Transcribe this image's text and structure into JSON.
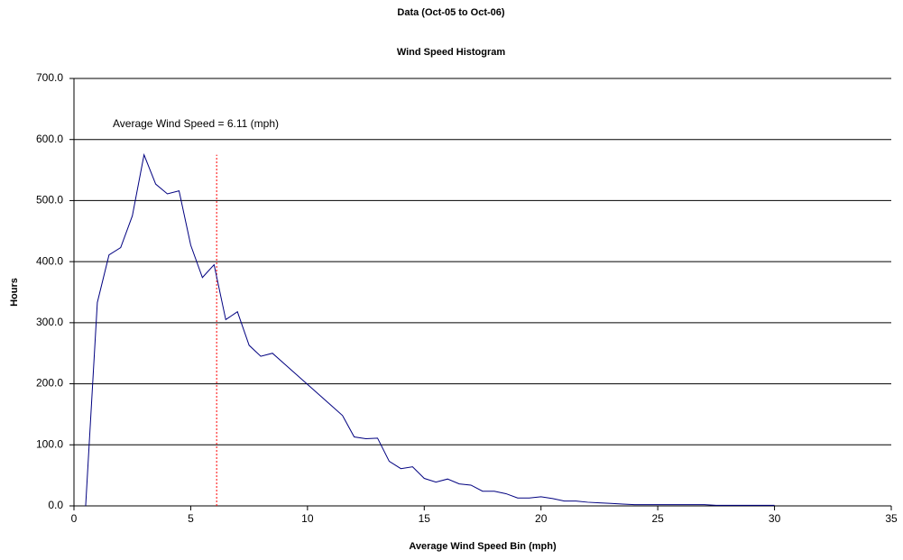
{
  "chart_data": {
    "type": "line",
    "title": "Data (Oct-05 to Oct-06)",
    "subtitle": "Wind Speed Histogram",
    "x_label": "Average  Wind Speed Bin (mph)",
    "y_label": "Hours",
    "annotation": "Average Wind Speed = 6.11 (mph)",
    "average_line": {
      "x": 6.11,
      "y_top": 575,
      "color": "#ff0000"
    },
    "x": [
      0.5,
      1,
      1.5,
      2,
      2.5,
      3,
      3.5,
      4,
      4.5,
      5,
      5.5,
      6,
      6.5,
      7,
      7.5,
      8,
      8.5,
      9,
      9.5,
      10,
      10.5,
      11,
      11.5,
      12,
      12.5,
      13,
      13.5,
      14,
      14.5,
      15,
      15.5,
      16,
      16.5,
      17,
      17.5,
      18,
      18.5,
      19,
      19.5,
      20,
      20.5,
      21,
      21.5,
      22,
      22.5,
      23,
      23.5,
      24,
      24.5,
      25,
      25.5,
      26,
      26.5,
      27,
      27.5,
      28,
      28.5,
      29,
      29.5,
      30
    ],
    "values": [
      0,
      333,
      411,
      423,
      475,
      575,
      527,
      511,
      516,
      427,
      374,
      395,
      305,
      318,
      263,
      245,
      250,
      233,
      216,
      199,
      182,
      165,
      148,
      113,
      110,
      111,
      73,
      61,
      64,
      45,
      39,
      44,
      36,
      34,
      24,
      24,
      20,
      13,
      13,
      15,
      12,
      8,
      8,
      6,
      5,
      4,
      3,
      2,
      2,
      2,
      2,
      2,
      2,
      2,
      1,
      1,
      1,
      1,
      1,
      1
    ],
    "color": "#000080",
    "xlim": [
      0,
      35
    ],
    "xticks": [
      0,
      5,
      10,
      15,
      20,
      25,
      30,
      35
    ],
    "ylim": [
      0,
      700
    ],
    "yticks": [
      {
        "value": 0,
        "label": "0.0"
      },
      {
        "value": 100,
        "label": "100.0"
      },
      {
        "value": 200,
        "label": "200.0"
      },
      {
        "value": 300,
        "label": "300.0"
      },
      {
        "value": 400,
        "label": "400.0"
      },
      {
        "value": 500,
        "label": "500.0"
      },
      {
        "value": 600,
        "label": "600.0"
      },
      {
        "value": 700,
        "label": "700.0"
      }
    ],
    "grid": true
  }
}
